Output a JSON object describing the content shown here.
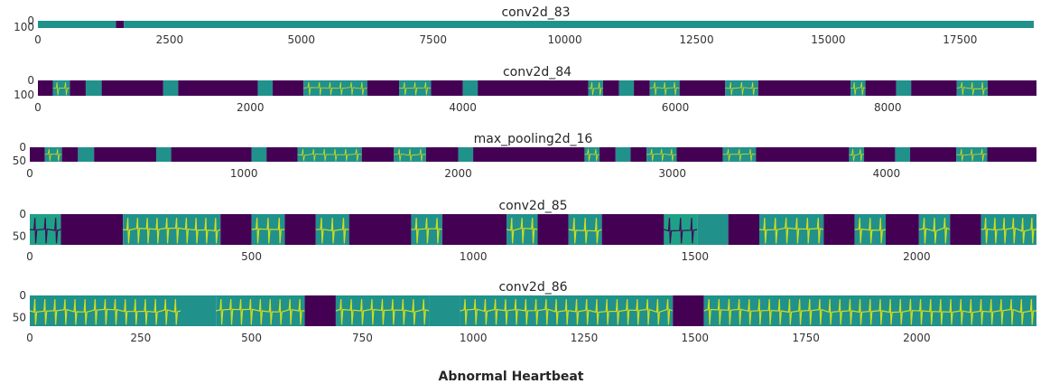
{
  "figure": {
    "title": "Abnormal Heartbeat"
  },
  "colors": {
    "purple": "#440154",
    "teal": "#21918c",
    "green": "#1fa187",
    "yellow": "#d8e219",
    "lime": "#b5de2b"
  },
  "chart_data": [
    {
      "type": "heatmap",
      "title": "conv2d_83",
      "xlim": [
        0,
        18900
      ],
      "ylim": [
        0,
        100
      ],
      "x_ticks": [
        0,
        2500,
        5000,
        7500,
        10000,
        12500,
        15000,
        17500
      ],
      "y_ticks": [
        0,
        100
      ],
      "segments": [
        {
          "x0": 0,
          "x1": 1480,
          "color": "teal"
        },
        {
          "x0": 1480,
          "x1": 1630,
          "color": "purple"
        },
        {
          "x0": 1630,
          "x1": 18900,
          "color": "teal"
        }
      ]
    },
    {
      "type": "heatmap",
      "title": "conv2d_84",
      "xlim": [
        0,
        9400
      ],
      "ylim": [
        0,
        100
      ],
      "x_ticks": [
        0,
        2000,
        4000,
        6000,
        8000
      ],
      "y_ticks": [
        0,
        100
      ],
      "segments": [
        {
          "x0": 0,
          "x1": 140,
          "color": "purple"
        },
        {
          "x0": 140,
          "x1": 300,
          "color": "teal",
          "trace": true
        },
        {
          "x0": 300,
          "x1": 450,
          "color": "purple"
        },
        {
          "x0": 450,
          "x1": 600,
          "color": "teal"
        },
        {
          "x0": 600,
          "x1": 1180,
          "color": "purple"
        },
        {
          "x0": 1180,
          "x1": 1320,
          "color": "teal"
        },
        {
          "x0": 1320,
          "x1": 2070,
          "color": "purple"
        },
        {
          "x0": 2070,
          "x1": 2210,
          "color": "teal"
        },
        {
          "x0": 2210,
          "x1": 2500,
          "color": "purple"
        },
        {
          "x0": 2500,
          "x1": 3100,
          "color": "teal",
          "trace": true
        },
        {
          "x0": 3100,
          "x1": 3400,
          "color": "purple"
        },
        {
          "x0": 3400,
          "x1": 3700,
          "color": "teal",
          "trace": true
        },
        {
          "x0": 3700,
          "x1": 4000,
          "color": "purple"
        },
        {
          "x0": 4000,
          "x1": 4140,
          "color": "teal"
        },
        {
          "x0": 4140,
          "x1": 5180,
          "color": "purple"
        },
        {
          "x0": 5180,
          "x1": 5320,
          "color": "teal",
          "trace": true
        },
        {
          "x0": 5320,
          "x1": 5470,
          "color": "purple"
        },
        {
          "x0": 5470,
          "x1": 5610,
          "color": "teal"
        },
        {
          "x0": 5610,
          "x1": 5760,
          "color": "purple"
        },
        {
          "x0": 5760,
          "x1": 6040,
          "color": "teal",
          "trace": true
        },
        {
          "x0": 6040,
          "x1": 6470,
          "color": "purple"
        },
        {
          "x0": 6470,
          "x1": 6780,
          "color": "teal",
          "trace": true
        },
        {
          "x0": 6780,
          "x1": 7650,
          "color": "purple"
        },
        {
          "x0": 7650,
          "x1": 7790,
          "color": "teal",
          "trace": true
        },
        {
          "x0": 7790,
          "x1": 8080,
          "color": "purple"
        },
        {
          "x0": 8080,
          "x1": 8220,
          "color": "teal"
        },
        {
          "x0": 8220,
          "x1": 8650,
          "color": "purple"
        },
        {
          "x0": 8650,
          "x1": 8940,
          "color": "teal",
          "trace": true
        },
        {
          "x0": 8940,
          "x1": 9400,
          "color": "purple"
        }
      ]
    },
    {
      "type": "heatmap",
      "title": "max_pooling2d_16",
      "xlim": [
        0,
        4700
      ],
      "ylim": [
        0,
        50
      ],
      "x_ticks": [
        0,
        1000,
        2000,
        3000,
        4000
      ],
      "y_ticks": [
        0,
        50
      ],
      "segments": [
        {
          "x0": 0,
          "x1": 70,
          "color": "purple"
        },
        {
          "x0": 70,
          "x1": 150,
          "color": "teal",
          "trace": true
        },
        {
          "x0": 150,
          "x1": 225,
          "color": "purple"
        },
        {
          "x0": 225,
          "x1": 300,
          "color": "teal"
        },
        {
          "x0": 300,
          "x1": 590,
          "color": "purple"
        },
        {
          "x0": 590,
          "x1": 660,
          "color": "teal"
        },
        {
          "x0": 660,
          "x1": 1035,
          "color": "purple"
        },
        {
          "x0": 1035,
          "x1": 1105,
          "color": "teal"
        },
        {
          "x0": 1105,
          "x1": 1250,
          "color": "purple"
        },
        {
          "x0": 1250,
          "x1": 1550,
          "color": "teal",
          "trace": true
        },
        {
          "x0": 1550,
          "x1": 1700,
          "color": "purple"
        },
        {
          "x0": 1700,
          "x1": 1850,
          "color": "teal",
          "trace": true
        },
        {
          "x0": 1850,
          "x1": 2000,
          "color": "purple"
        },
        {
          "x0": 2000,
          "x1": 2070,
          "color": "teal"
        },
        {
          "x0": 2070,
          "x1": 2590,
          "color": "purple"
        },
        {
          "x0": 2590,
          "x1": 2660,
          "color": "teal",
          "trace": true
        },
        {
          "x0": 2660,
          "x1": 2735,
          "color": "purple"
        },
        {
          "x0": 2735,
          "x1": 2805,
          "color": "teal"
        },
        {
          "x0": 2805,
          "x1": 2880,
          "color": "purple"
        },
        {
          "x0": 2880,
          "x1": 3020,
          "color": "teal",
          "trace": true
        },
        {
          "x0": 3020,
          "x1": 3235,
          "color": "purple"
        },
        {
          "x0": 3235,
          "x1": 3390,
          "color": "teal",
          "trace": true
        },
        {
          "x0": 3390,
          "x1": 3825,
          "color": "purple"
        },
        {
          "x0": 3825,
          "x1": 3895,
          "color": "teal",
          "trace": true
        },
        {
          "x0": 3895,
          "x1": 4040,
          "color": "purple"
        },
        {
          "x0": 4040,
          "x1": 4110,
          "color": "teal"
        },
        {
          "x0": 4110,
          "x1": 4325,
          "color": "purple"
        },
        {
          "x0": 4325,
          "x1": 4470,
          "color": "teal",
          "trace": true
        },
        {
          "x0": 4470,
          "x1": 4700,
          "color": "purple"
        }
      ]
    },
    {
      "type": "heatmap",
      "title": "conv2d_85",
      "xlim": [
        0,
        2270
      ],
      "ylim": [
        0,
        70
      ],
      "x_ticks": [
        0,
        500,
        1000,
        1500,
        2000
      ],
      "y_ticks": [
        0,
        50
      ],
      "segments": [
        {
          "x0": 0,
          "x1": 70,
          "color": "green",
          "trace": true,
          "trace_color": "purple"
        },
        {
          "x0": 70,
          "x1": 210,
          "color": "purple"
        },
        {
          "x0": 210,
          "x1": 430,
          "color": "teal",
          "trace": true
        },
        {
          "x0": 430,
          "x1": 500,
          "color": "purple"
        },
        {
          "x0": 500,
          "x1": 575,
          "color": "teal",
          "trace": true
        },
        {
          "x0": 575,
          "x1": 645,
          "color": "purple"
        },
        {
          "x0": 645,
          "x1": 720,
          "color": "teal",
          "trace": true
        },
        {
          "x0": 720,
          "x1": 860,
          "color": "purple"
        },
        {
          "x0": 860,
          "x1": 930,
          "color": "teal",
          "trace": true
        },
        {
          "x0": 930,
          "x1": 1075,
          "color": "purple"
        },
        {
          "x0": 1075,
          "x1": 1145,
          "color": "teal",
          "trace": true
        },
        {
          "x0": 1145,
          "x1": 1215,
          "color": "purple"
        },
        {
          "x0": 1215,
          "x1": 1290,
          "color": "teal",
          "trace": true
        },
        {
          "x0": 1290,
          "x1": 1430,
          "color": "purple"
        },
        {
          "x0": 1430,
          "x1": 1505,
          "color": "green",
          "trace": true,
          "trace_color": "purple"
        },
        {
          "x0": 1505,
          "x1": 1575,
          "color": "teal"
        },
        {
          "x0": 1575,
          "x1": 1645,
          "color": "purple"
        },
        {
          "x0": 1645,
          "x1": 1790,
          "color": "teal",
          "trace": true
        },
        {
          "x0": 1790,
          "x1": 1860,
          "color": "purple"
        },
        {
          "x0": 1860,
          "x1": 1930,
          "color": "teal",
          "trace": true
        },
        {
          "x0": 1930,
          "x1": 2005,
          "color": "purple"
        },
        {
          "x0": 2005,
          "x1": 2075,
          "color": "teal",
          "trace": true
        },
        {
          "x0": 2075,
          "x1": 2145,
          "color": "purple"
        },
        {
          "x0": 2145,
          "x1": 2270,
          "color": "teal",
          "trace": true
        }
      ]
    },
    {
      "type": "heatmap",
      "title": "conv2d_86",
      "xlim": [
        0,
        2270
      ],
      "ylim": [
        0,
        70
      ],
      "x_ticks": [
        0,
        250,
        500,
        750,
        1000,
        1250,
        1500,
        1750,
        2000
      ],
      "y_ticks": [
        0,
        50
      ],
      "segments": [
        {
          "x0": 0,
          "x1": 340,
          "color": "teal",
          "trace": true
        },
        {
          "x0": 340,
          "x1": 420,
          "color": "teal"
        },
        {
          "x0": 420,
          "x1": 620,
          "color": "teal",
          "trace": true
        },
        {
          "x0": 620,
          "x1": 690,
          "color": "purple"
        },
        {
          "x0": 690,
          "x1": 900,
          "color": "teal",
          "trace": true
        },
        {
          "x0": 900,
          "x1": 970,
          "color": "teal"
        },
        {
          "x0": 970,
          "x1": 1450,
          "color": "teal",
          "trace": true
        },
        {
          "x0": 1450,
          "x1": 1520,
          "color": "purple"
        },
        {
          "x0": 1520,
          "x1": 2270,
          "color": "teal",
          "trace": true
        }
      ]
    }
  ]
}
